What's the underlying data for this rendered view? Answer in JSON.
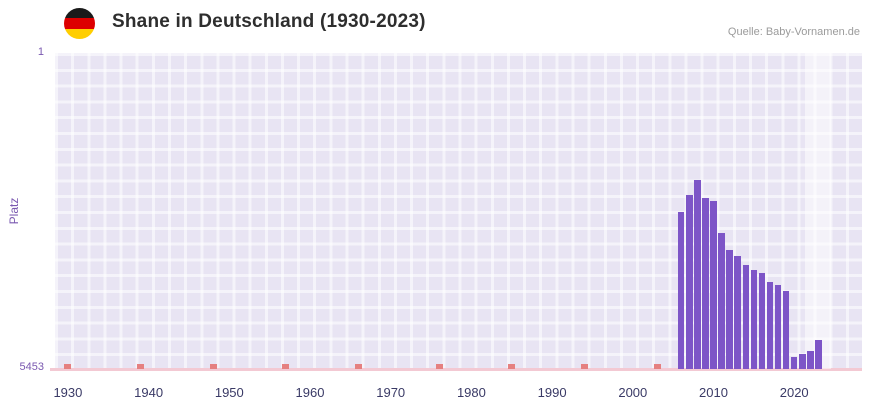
{
  "header": {
    "title": "Shane in Deutschland (1930-2023)",
    "source": "Quelle: Baby-Vornamen.de"
  },
  "flag_icon": {
    "name": "germany-flag-icon",
    "stripes": [
      "#1a1a1a",
      "#dd0000",
      "#ffce00"
    ]
  },
  "chart_data": {
    "type": "bar",
    "title": "Shane in Deutschland (1930-2023)",
    "ylabel": "Platz",
    "y_axis": {
      "min": 1,
      "max": 5453,
      "inverted": true,
      "top_tick_label": "1",
      "bottom_tick_label": "5453"
    },
    "x_axis": {
      "min": 1928.4,
      "max": 2028.4,
      "ticks": [
        1930,
        1940,
        1950,
        1960,
        1970,
        1980,
        1990,
        2000,
        2010,
        2020
      ]
    },
    "series": [
      {
        "name": "Platz",
        "color": "#7d55c7",
        "points": [
          {
            "year": 2006,
            "rank": 2750
          },
          {
            "year": 2007,
            "rank": 2450
          },
          {
            "year": 2008,
            "rank": 2200
          },
          {
            "year": 2009,
            "rank": 2500
          },
          {
            "year": 2010,
            "rank": 2550
          },
          {
            "year": 2011,
            "rank": 3100
          },
          {
            "year": 2012,
            "rank": 3400
          },
          {
            "year": 2013,
            "rank": 3500
          },
          {
            "year": 2014,
            "rank": 3650
          },
          {
            "year": 2015,
            "rank": 3750
          },
          {
            "year": 2016,
            "rank": 3800
          },
          {
            "year": 2017,
            "rank": 3950
          },
          {
            "year": 2018,
            "rank": 4000
          },
          {
            "year": 2019,
            "rank": 4100
          },
          {
            "year": 2020,
            "rank": 5250
          },
          {
            "year": 2021,
            "rank": 5200
          },
          {
            "year": 2022,
            "rank": 5150
          },
          {
            "year": 2023,
            "rank": 4950
          }
        ]
      }
    ],
    "no_rank_marker_years": [
      1930,
      1939,
      1948,
      1957,
      1966,
      1976,
      1985,
      1994,
      2003
    ],
    "no_rank_marker_color": "#e58080",
    "axis_line_color": "#f3c9d3",
    "highlight_band": {
      "from": 2021.3,
      "to": 2024.5
    }
  }
}
